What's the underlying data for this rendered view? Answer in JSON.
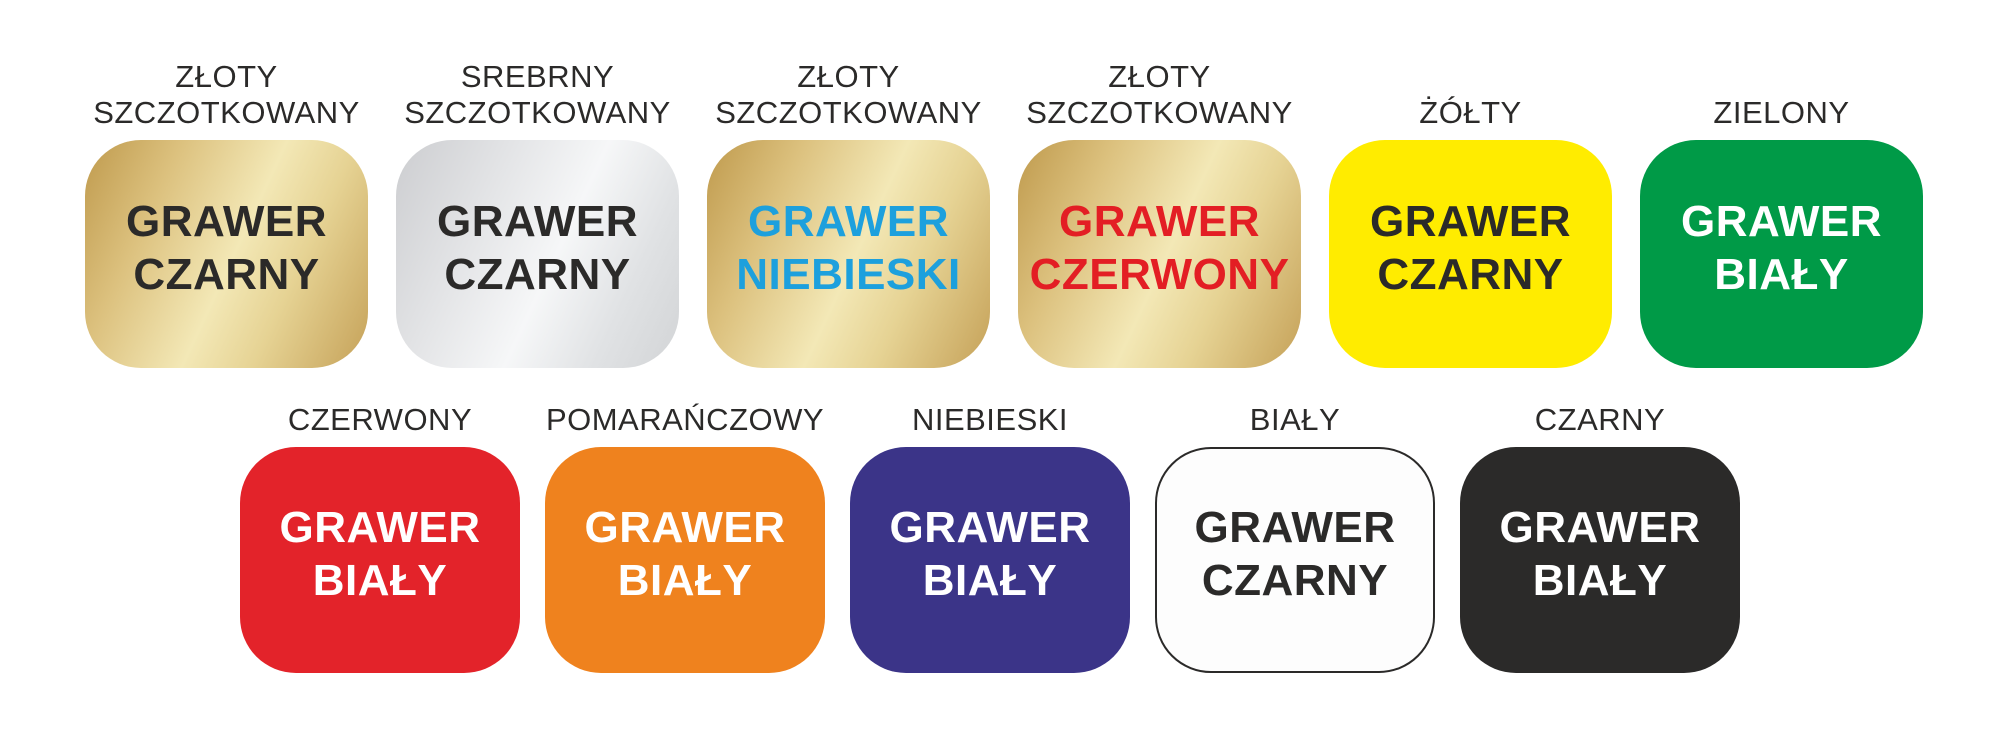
{
  "page": {
    "background": "#ffffff",
    "label_color": "#2b2a29"
  },
  "palette": {
    "gold_gradient": "linear-gradient(115deg,#bf9a4d 0%,#dcc17e 25%,#f3e8b6 52%,#e6d394 70%,#c5a158 100%)",
    "silver_gradient": "linear-gradient(115deg,#cccdd0 0%,#e3e4e6 30%,#f6f7f8 55%,#e0e2e4 78%,#d2d4d6 100%)",
    "yellow": "#ffec00",
    "green": "#009a47",
    "red": "#e3232a",
    "orange": "#ef821e",
    "navy_blue": "#3b3488",
    "white": "#fdfdfd",
    "black": "#2b2a29",
    "engraving_black": "#2b2a29",
    "engraving_blue": "#1da0dd",
    "engraving_red": "#e31e24",
    "engraving_white": "#ffffff"
  },
  "row1": [
    {
      "label": "ZŁOTY\nSZCZOTKOWANY",
      "tile_bg": "linear-gradient(115deg,#bf9a4d 0%,#dcc17e 25%,#f3e8b6 52%,#e6d394 70%,#c5a158 100%)",
      "engraving": "GRAWER\nCZARNY",
      "engraving_color": "#2b2a29"
    },
    {
      "label": "SREBRNY\nSZCZOTKOWANY",
      "tile_bg": "linear-gradient(115deg,#cccdd0 0%,#e3e4e6 30%,#f6f7f8 55%,#e0e2e4 78%,#d2d4d6 100%)",
      "engraving": "GRAWER\nCZARNY",
      "engraving_color": "#2b2a29"
    },
    {
      "label": "ZŁOTY\nSZCZOTKOWANY",
      "tile_bg": "linear-gradient(115deg,#bf9a4d 0%,#dcc17e 25%,#f3e8b6 52%,#e6d394 70%,#c5a158 100%)",
      "engraving": "GRAWER\nNIEBIESKI",
      "engraving_color": "#1da0dd"
    },
    {
      "label": "ZŁOTY\nSZCZOTKOWANY",
      "tile_bg": "linear-gradient(115deg,#bf9a4d 0%,#dcc17e 25%,#f3e8b6 52%,#e6d394 70%,#c5a158 100%)",
      "engraving": "GRAWER\nCZERWONY",
      "engraving_color": "#e31e24"
    },
    {
      "label": "ŻÓŁTY",
      "tile_bg": "#ffec00",
      "engraving": "GRAWER\nCZARNY",
      "engraving_color": "#2b2a29"
    },
    {
      "label": "ZIELONY",
      "tile_bg": "#009a47",
      "engraving": "GRAWER\nBIAŁY",
      "engraving_color": "#ffffff"
    }
  ],
  "row2": [
    {
      "label": "CZERWONY",
      "tile_bg": "#e3232a",
      "engraving": "GRAWER\nBIAŁY",
      "engraving_color": "#ffffff"
    },
    {
      "label": "POMARAŃCZOWY",
      "tile_bg": "#ef821e",
      "engraving": "GRAWER\nBIAŁY",
      "engraving_color": "#ffffff"
    },
    {
      "label": "NIEBIESKI",
      "tile_bg": "#3b3488",
      "engraving": "GRAWER\nBIAŁY",
      "engraving_color": "#ffffff"
    },
    {
      "label": "BIAŁY",
      "tile_bg": "#fdfdfd",
      "engraving": "GRAWER\nCZARNY",
      "engraving_color": "#2b2a29"
    },
    {
      "label": "CZARNY",
      "tile_bg": "#2b2a29",
      "engraving": "GRAWER\nBIAŁY",
      "engraving_color": "#ffffff"
    }
  ]
}
